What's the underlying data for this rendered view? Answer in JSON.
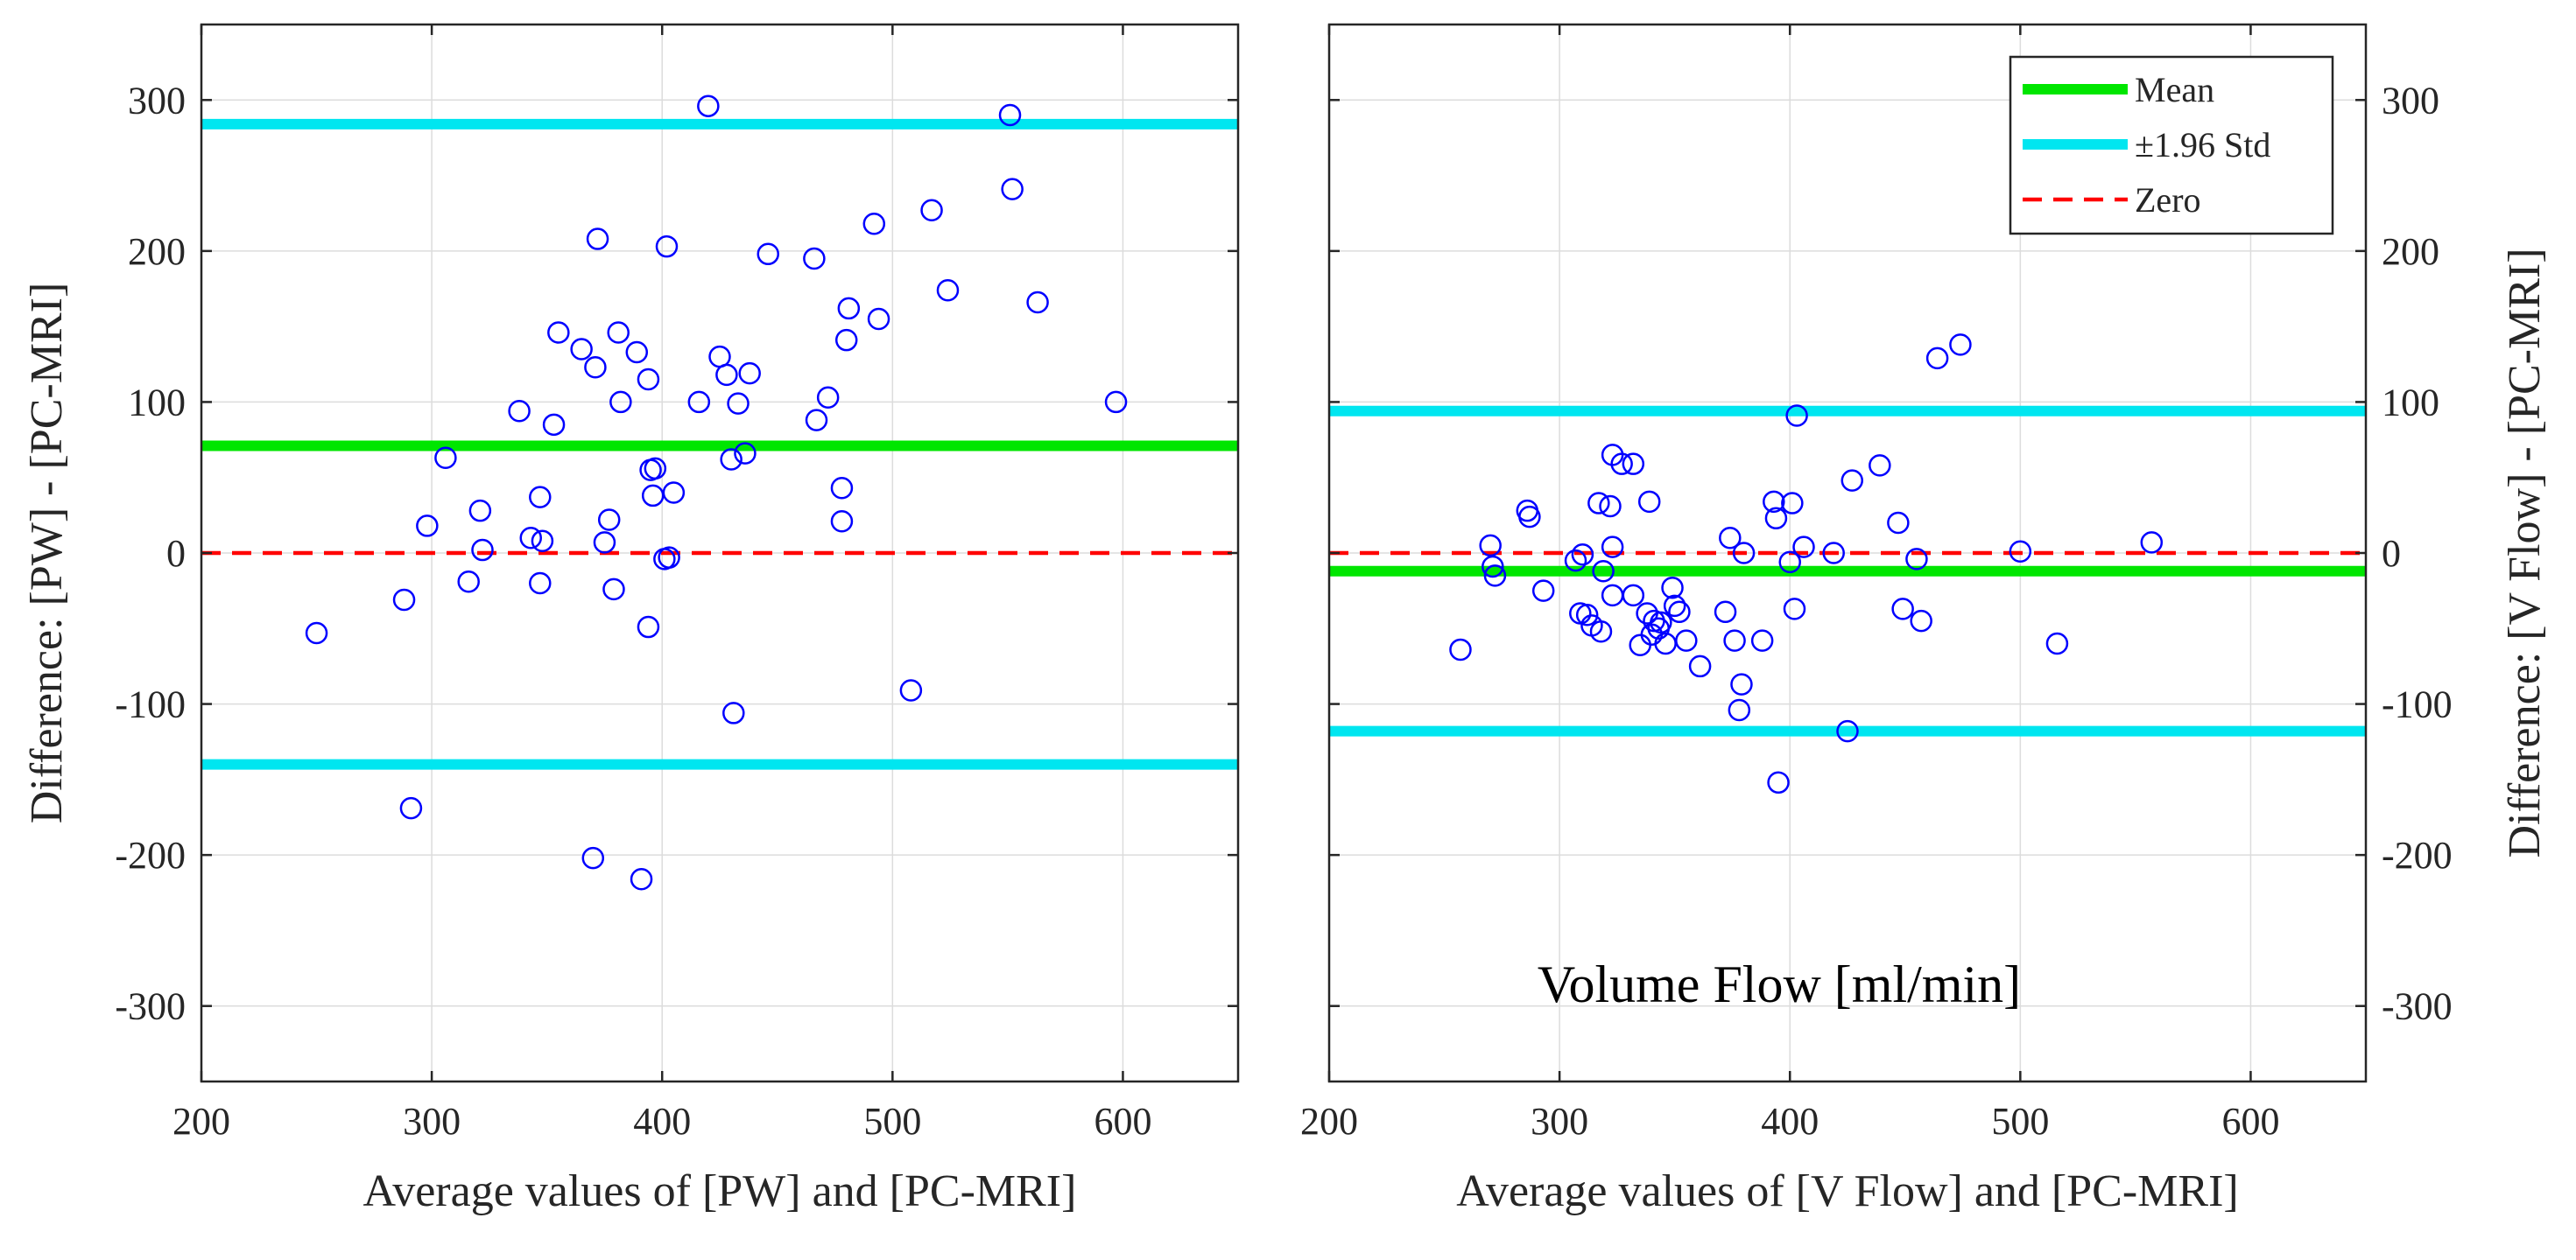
{
  "colors": {
    "mean": "#00e600",
    "std": "#00e6f0",
    "zero": "#ff0000",
    "points": "#0000ff",
    "grid": "#dcdcdc",
    "axis": "#262626"
  },
  "chart_data": [
    {
      "type": "scatter",
      "title": "",
      "xlabel": "Average values of [PW] and [PC-MRI]",
      "ylabel": "Difference: [PW] - [PC-MRI]",
      "xlim": [
        200,
        650
      ],
      "ylim": [
        -350,
        350
      ],
      "xticks": [
        200,
        300,
        400,
        500,
        600
      ],
      "yticks": [
        -300,
        -200,
        -100,
        0,
        100,
        200,
        300
      ],
      "xtick_labels": [
        "200",
        "300",
        "400",
        "500",
        "600"
      ],
      "ytick_labels": [
        "-300",
        "-200",
        "-100",
        "0",
        "100",
        "200",
        "300"
      ],
      "y_axis_side": "left",
      "grid": true,
      "mean": 71,
      "upper_limit": 284,
      "lower_limit": -140,
      "annotation": "",
      "points": [
        [
          250,
          -53
        ],
        [
          288,
          -31
        ],
        [
          291,
          -169
        ],
        [
          298,
          18
        ],
        [
          306,
          63
        ],
        [
          316,
          -19
        ],
        [
          321,
          28
        ],
        [
          322,
          2
        ],
        [
          338,
          94
        ],
        [
          343,
          10
        ],
        [
          347,
          -20
        ],
        [
          347,
          37
        ],
        [
          348,
          8
        ],
        [
          353,
          85
        ],
        [
          355,
          146
        ],
        [
          365,
          135
        ],
        [
          370,
          -202
        ],
        [
          371,
          123
        ],
        [
          372,
          208
        ],
        [
          375,
          7
        ],
        [
          377,
          22
        ],
        [
          379,
          -24
        ],
        [
          381,
          146
        ],
        [
          382,
          100
        ],
        [
          389,
          133
        ],
        [
          391,
          -216
        ],
        [
          394,
          -49
        ],
        [
          394,
          115
        ],
        [
          395,
          55
        ],
        [
          396,
          38
        ],
        [
          397,
          56
        ],
        [
          401,
          -4
        ],
        [
          402,
          203
        ],
        [
          403,
          -3
        ],
        [
          405,
          40
        ],
        [
          416,
          100
        ],
        [
          420,
          296
        ],
        [
          425,
          130
        ],
        [
          428,
          118
        ],
        [
          430,
          62
        ],
        [
          431,
          -106
        ],
        [
          433,
          99
        ],
        [
          436,
          66
        ],
        [
          438,
          119
        ],
        [
          446,
          198
        ],
        [
          466,
          195
        ],
        [
          467,
          88
        ],
        [
          472,
          103
        ],
        [
          478,
          43
        ],
        [
          478,
          21
        ],
        [
          480,
          141
        ],
        [
          481,
          162
        ],
        [
          492,
          218
        ],
        [
          494,
          155
        ],
        [
          508,
          -91
        ],
        [
          517,
          227
        ],
        [
          524,
          174
        ],
        [
          551,
          290
        ],
        [
          552,
          241
        ],
        [
          563,
          166
        ],
        [
          597,
          100
        ]
      ]
    },
    {
      "type": "scatter",
      "title": "",
      "xlabel": "Average values of [V Flow] and [PC-MRI]",
      "ylabel": "Difference: [V Flow] - [PC-MRI]",
      "xlim": [
        200,
        650
      ],
      "ylim": [
        -350,
        350
      ],
      "xticks": [
        200,
        300,
        400,
        500,
        600
      ],
      "yticks": [
        -300,
        -200,
        -100,
        0,
        100,
        200,
        300
      ],
      "xtick_labels": [
        "200",
        "300",
        "400",
        "500",
        "600"
      ],
      "ytick_labels": [
        "-300",
        "-200",
        "-100",
        "0",
        "100",
        "200",
        "300"
      ],
      "y_axis_side": "right",
      "grid": true,
      "mean": -12,
      "upper_limit": 94,
      "lower_limit": -118,
      "annotation": "Volume Flow [ml/min]",
      "points": [
        [
          257,
          -64
        ],
        [
          270,
          5
        ],
        [
          271,
          -9
        ],
        [
          272,
          -15
        ],
        [
          286,
          28
        ],
        [
          287,
          24
        ],
        [
          293,
          -25
        ],
        [
          307,
          -5
        ],
        [
          309,
          -40
        ],
        [
          310,
          -1
        ],
        [
          312,
          -41
        ],
        [
          314,
          -48
        ],
        [
          317,
          33
        ],
        [
          318,
          -52
        ],
        [
          319,
          -12
        ],
        [
          322,
          31
        ],
        [
          323,
          -28
        ],
        [
          323,
          65
        ],
        [
          323,
          4
        ],
        [
          327,
          59
        ],
        [
          332,
          59
        ],
        [
          332,
          -28
        ],
        [
          335,
          -61
        ],
        [
          338,
          -40
        ],
        [
          339,
          34
        ],
        [
          340,
          -54
        ],
        [
          341,
          -45
        ],
        [
          343,
          -50
        ],
        [
          344,
          -46
        ],
        [
          346,
          -60
        ],
        [
          349,
          -23
        ],
        [
          350,
          -35
        ],
        [
          352,
          -39
        ],
        [
          355,
          -58
        ],
        [
          361,
          -75
        ],
        [
          372,
          -39
        ],
        [
          374,
          10
        ],
        [
          376,
          -58
        ],
        [
          378,
          -104
        ],
        [
          379,
          -87
        ],
        [
          380,
          0
        ],
        [
          388,
          -58
        ],
        [
          393,
          34
        ],
        [
          394,
          23
        ],
        [
          395,
          -152
        ],
        [
          400,
          -6
        ],
        [
          401,
          33
        ],
        [
          402,
          -37
        ],
        [
          403,
          91
        ],
        [
          406,
          4
        ],
        [
          419,
          0
        ],
        [
          425,
          -118
        ],
        [
          427,
          48
        ],
        [
          439,
          58
        ],
        [
          447,
          20
        ],
        [
          449,
          -37
        ],
        [
          455,
          -4
        ],
        [
          457,
          -45
        ],
        [
          464,
          129
        ],
        [
          474,
          138
        ],
        [
          500,
          1
        ],
        [
          516,
          -60
        ],
        [
          557,
          7
        ]
      ]
    }
  ],
  "legend": {
    "placement": "top-right of right panel",
    "items": [
      {
        "key": "mean",
        "label": "Mean"
      },
      {
        "key": "std",
        "label": "±1.96 Std"
      },
      {
        "key": "zero",
        "label": "Zero"
      }
    ]
  }
}
